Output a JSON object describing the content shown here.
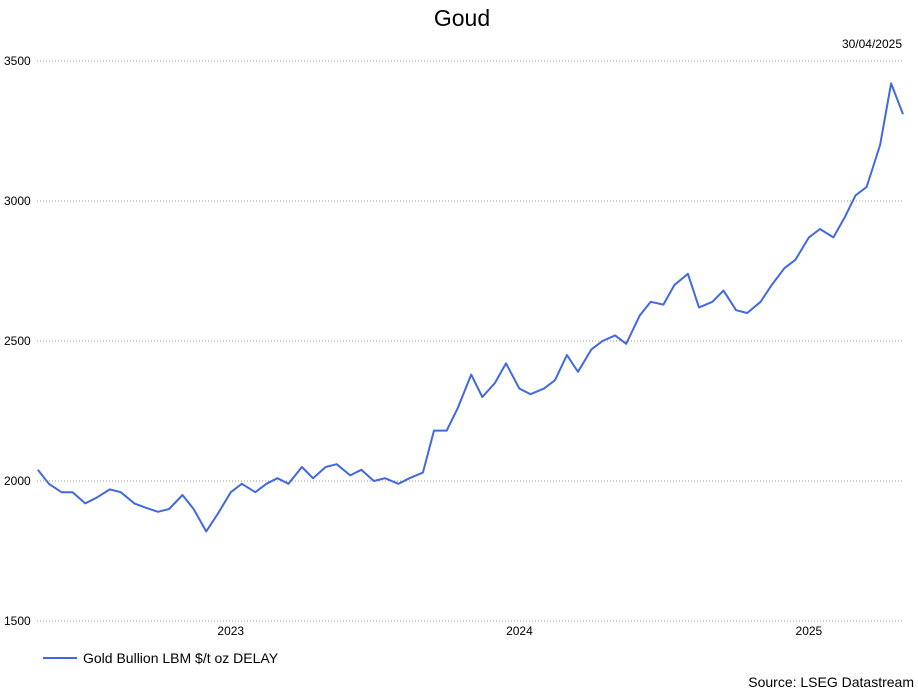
{
  "chart_data": {
    "type": "line",
    "title": "Goud",
    "date_label": "30/04/2025",
    "source": "Source: LSEG Datastream",
    "ylim": [
      1500,
      3500
    ],
    "yticks": [
      1500,
      2000,
      2500,
      3000,
      3500
    ],
    "xticks": [
      {
        "label": "2023",
        "x": "2023-01-01"
      },
      {
        "label": "2024",
        "x": "2024-01-01"
      },
      {
        "label": "2025",
        "x": "2025-01-01"
      }
    ],
    "xlim": [
      "2022-05-01",
      "2025-04-30"
    ],
    "grid": true,
    "legend_position": "bottom-left",
    "series_color": "#4169e1",
    "series": [
      {
        "name": "Gold Bullion LBM $/t oz DELAY",
        "x": [
          "2022-05-02",
          "2022-05-16",
          "2022-06-01",
          "2022-06-15",
          "2022-07-01",
          "2022-07-15",
          "2022-08-01",
          "2022-08-15",
          "2022-09-01",
          "2022-09-15",
          "2022-10-01",
          "2022-10-15",
          "2022-11-01",
          "2022-11-15",
          "2022-12-01",
          "2022-12-15",
          "2023-01-01",
          "2023-01-15",
          "2023-02-01",
          "2023-02-15",
          "2023-03-01",
          "2023-03-15",
          "2023-04-01",
          "2023-04-15",
          "2023-05-01",
          "2023-05-15",
          "2023-06-01",
          "2023-06-15",
          "2023-07-01",
          "2023-07-15",
          "2023-08-01",
          "2023-08-15",
          "2023-09-01",
          "2023-09-15",
          "2023-10-01",
          "2023-10-15",
          "2023-11-01",
          "2023-11-15",
          "2023-12-01",
          "2023-12-15",
          "2024-01-01",
          "2024-01-15",
          "2024-02-01",
          "2024-02-15",
          "2024-03-01",
          "2024-03-15",
          "2024-04-01",
          "2024-04-15",
          "2024-05-01",
          "2024-05-15",
          "2024-06-01",
          "2024-06-15",
          "2024-07-01",
          "2024-07-15",
          "2024-08-01",
          "2024-08-15",
          "2024-09-01",
          "2024-09-15",
          "2024-10-01",
          "2024-10-15",
          "2024-11-01",
          "2024-11-15",
          "2024-12-01",
          "2024-12-15",
          "2025-01-01",
          "2025-01-15",
          "2025-02-01",
          "2025-02-15",
          "2025-03-01",
          "2025-03-15",
          "2025-04-01",
          "2025-04-15",
          "2025-04-30"
        ],
        "values": [
          2040,
          1990,
          1960,
          1960,
          1920,
          1940,
          1970,
          1960,
          1920,
          1905,
          1890,
          1900,
          1950,
          1900,
          1820,
          1880,
          1960,
          1990,
          1960,
          1990,
          2010,
          1990,
          2050,
          2010,
          2050,
          2060,
          2020,
          2040,
          2000,
          2010,
          1990,
          2010,
          2030,
          2180,
          2180,
          2260,
          2380,
          2300,
          2350,
          2420,
          2330,
          2310,
          2330,
          2360,
          2450,
          2390,
          2470,
          2500,
          2520,
          2490,
          2590,
          2640,
          2630,
          2700,
          2740,
          2620,
          2640,
          2680,
          2610,
          2600,
          2640,
          2700,
          2760,
          2790,
          2870,
          2900,
          2870,
          2940,
          3020,
          3050,
          3200,
          3420,
          3310
        ]
      }
    ]
  }
}
